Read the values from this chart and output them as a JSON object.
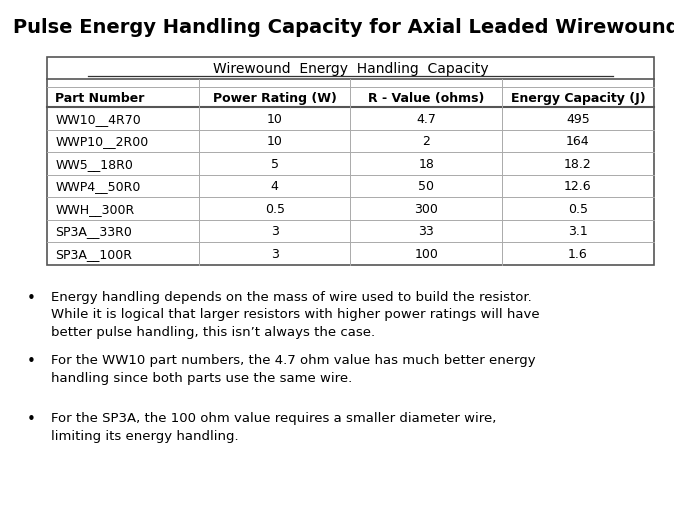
{
  "title": "Pulse Energy Handling Capacity for Axial Leaded Wirewounds",
  "table_title": "Wirewound  Energy  Handling  Capacity",
  "col_headers": [
    "Part Number",
    "Power Rating (W)",
    "R - Value (ohms)",
    "Energy Capacity (J)"
  ],
  "rows": [
    [
      "WW10__4R70",
      "10",
      "4.7",
      "495"
    ],
    [
      "WWP10__2R00",
      "10",
      "2",
      "164"
    ],
    [
      "WW5__18R0",
      "5",
      "18",
      "18.2"
    ],
    [
      "WWP4__50R0",
      "4",
      "50",
      "12.6"
    ],
    [
      "WWH__300R",
      "0.5",
      "300",
      "0.5"
    ],
    [
      "SP3A__33R0",
      "3",
      "33",
      "3.1"
    ],
    [
      "SP3A__100R",
      "3",
      "100",
      "1.6"
    ]
  ],
  "bullets": [
    "Energy handling depends on the mass of wire used to build the resistor.\nWhile it is logical that larger resistors with higher power ratings will have\nbetter pulse handling, this isn’t always the case.",
    "For the WW10 part numbers, the 4.7 ohm value has much better energy\nhandling since both parts use the same wire.",
    "For the SP3A, the 100 ohm value requires a smaller diameter wire,\nlimiting its energy handling."
  ],
  "bg_color": "#ffffff",
  "title_fontsize": 14,
  "table_title_fontsize": 10,
  "header_fontsize": 9,
  "cell_fontsize": 9,
  "bullet_fontsize": 9.5
}
